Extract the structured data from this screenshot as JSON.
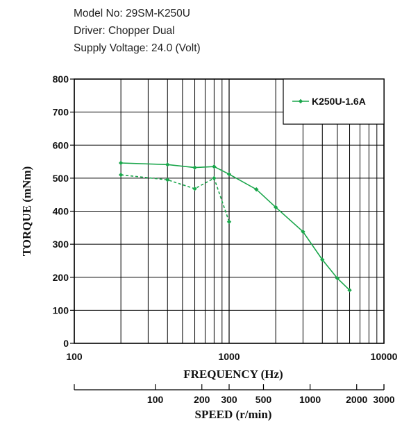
{
  "header": {
    "model": "Model No: 29SM-K250U",
    "driver": "Driver: Chopper Dual",
    "voltage": "Supply Voltage: 24.0 (Volt)"
  },
  "colors": {
    "series": "#1aa64b",
    "grid": "#000000"
  },
  "chart_data": {
    "type": "line",
    "xlabel": "FREQUENCY (Hz)",
    "x2label": "SPEED (r/min)",
    "ylabel": "TORQUE (mNm)",
    "xscale": "log",
    "xlim": [
      100,
      10000
    ],
    "ylim": [
      0,
      800
    ],
    "yticks": [
      0,
      100,
      200,
      300,
      400,
      500,
      600,
      700,
      800
    ],
    "xticks": [
      100,
      1000,
      10000
    ],
    "xtick_labels": [
      "100",
      "1000",
      "10000"
    ],
    "speed_ticks": [
      {
        "freq": 333.3,
        "label": "100"
      },
      {
        "freq": 666.7,
        "label": "200"
      },
      {
        "freq": 1000,
        "label": "300"
      },
      {
        "freq": 1666.7,
        "label": "500"
      },
      {
        "freq": 3333.3,
        "label": "1000"
      },
      {
        "freq": 6666.7,
        "label": "2000"
      },
      {
        "freq": 10000,
        "label": "3000"
      }
    ],
    "grid": true,
    "legend_position": "top-right",
    "series": [
      {
        "name": "K250U-1.6A",
        "style": "solid",
        "x": [
          200,
          400,
          600,
          800,
          1000,
          1500,
          2000,
          3000,
          4000,
          5000,
          6000
        ],
        "y": [
          546,
          541,
          532,
          535,
          512,
          466,
          412,
          338,
          253,
          197,
          161
        ]
      },
      {
        "name": "",
        "style": "dashed",
        "x": [
          200,
          400,
          600,
          800,
          1000
        ],
        "y": [
          510,
          495,
          468,
          500,
          368
        ]
      }
    ]
  }
}
